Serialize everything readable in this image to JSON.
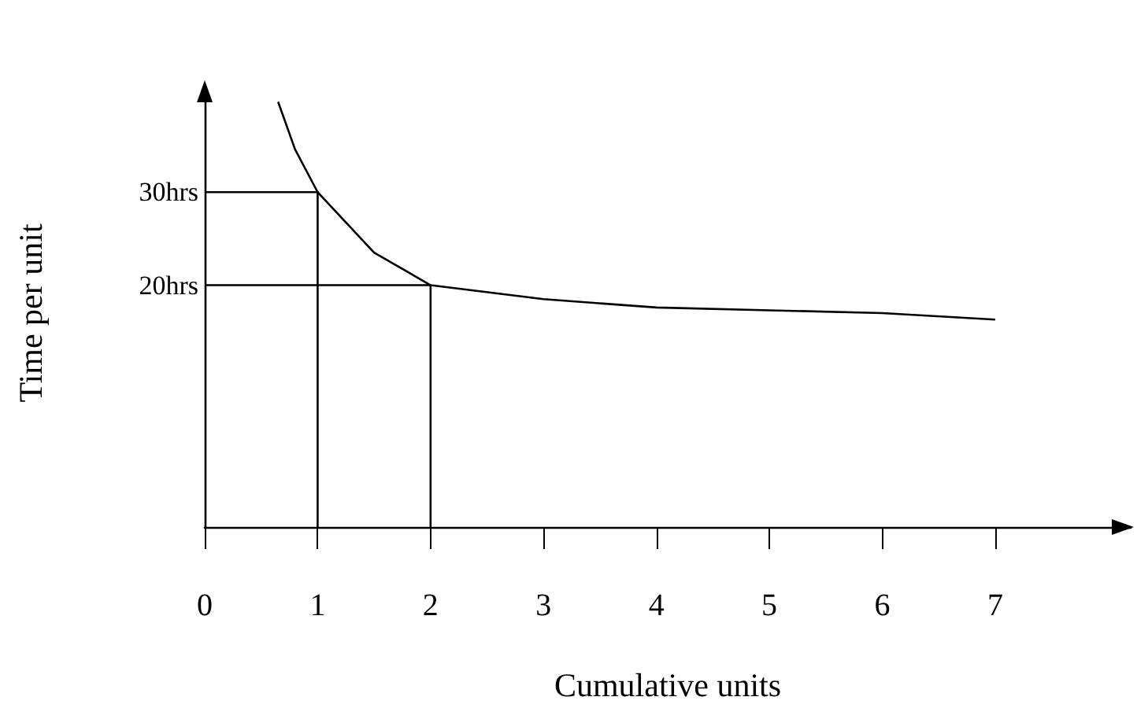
{
  "chart_data": {
    "type": "line",
    "xlabel": "Cumulative units",
    "ylabel": "Time per unit",
    "xlim": [
      0,
      8.2
    ],
    "xticks": [
      0,
      1,
      2,
      3,
      4,
      5,
      6,
      7
    ],
    "ylim": [
      -6,
      40
    ],
    "yticks": [
      {
        "value": 30,
        "label": "30hrs"
      },
      {
        "value": 20,
        "label": "20hrs"
      }
    ],
    "grid": false,
    "marker": "none",
    "line_style": "solid",
    "series": [
      {
        "color": "#000000",
        "x": [
          0.65,
          0.8,
          1,
          1.5,
          2,
          3,
          4,
          5,
          6,
          7
        ],
        "values": [
          39.7,
          34.6,
          30,
          23.5,
          20,
          18.5,
          17.6,
          17.3,
          17,
          16.3
        ]
      },
      {
        "color": "#000000",
        "x": [
          0,
          1,
          1
        ],
        "values": [
          30,
          30,
          -6
        ]
      },
      {
        "color": "#000000",
        "x": [
          0,
          2,
          2
        ],
        "values": [
          20,
          20,
          -6
        ]
      }
    ]
  }
}
